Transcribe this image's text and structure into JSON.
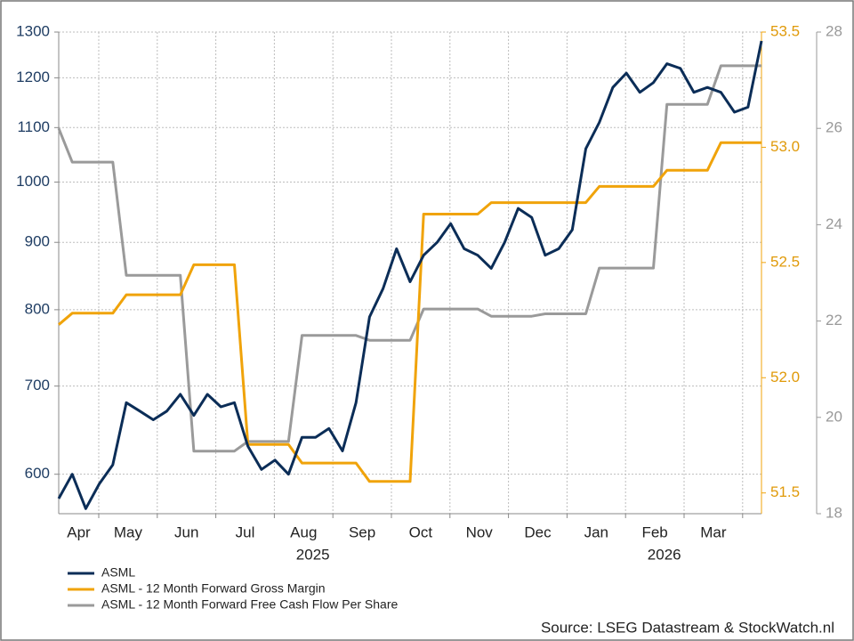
{
  "chart_data": {
    "type": "line",
    "ylog": true,
    "grid": true,
    "legend": "bottom-left",
    "source": "Source: LSEG Datastream & StockWatch.nl",
    "categories": [
      null,
      null,
      null,
      null,
      null,
      null,
      null,
      null,
      null,
      null,
      null,
      null,
      null,
      null,
      null,
      null,
      null,
      null,
      null,
      null,
      null,
      null,
      null,
      null,
      null,
      null,
      null,
      null,
      null,
      null,
      null,
      null,
      null,
      null,
      null,
      null,
      null,
      null,
      null,
      null,
      null,
      null,
      null,
      null,
      null,
      null,
      null,
      null,
      null,
      null,
      null,
      null,
      null
    ],
    "months": [
      "Apr",
      "May",
      "Jun",
      "Jul",
      "Aug",
      "Sep",
      "Oct",
      "Nov",
      "Dec",
      "Jan",
      "Feb",
      "Mar"
    ],
    "years": [
      "2025",
      "2026"
    ],
    "ylim": [
      560,
      1300
    ],
    "yticks": [
      600,
      700,
      800,
      900,
      1000,
      1100,
      1200,
      1300
    ],
    "y2lim": [
      51.41,
      53.5
    ],
    "y2ticks": [
      51.5,
      {
        "value": 52,
        "label": "52.0"
      },
      52.5,
      {
        "value": 53,
        "label": "53.0"
      },
      53.5
    ],
    "y3lim": [
      18,
      28
    ],
    "y3ticks": [
      18,
      20,
      22,
      24,
      26,
      28
    ],
    "series": [
      {
        "name": "ASML",
        "color": "#0b2d57",
        "axis": "y",
        "values": [
          575,
          600,
          565,
          590,
          610,
          680,
          670,
          660,
          670,
          690,
          665,
          690,
          675,
          680,
          630,
          605,
          615,
          600,
          640,
          640,
          650,
          625,
          680,
          790,
          830,
          890,
          840,
          880,
          900,
          930,
          890,
          880,
          860,
          900,
          955,
          940,
          880,
          890,
          920,
          1060,
          1110,
          1180,
          1210,
          1170,
          1190,
          1230,
          1220,
          1170,
          1180,
          1170,
          1130,
          1140,
          1280
        ]
      },
      {
        "name": "ASML - 12 Month Forward Gross Margin",
        "color": "#f0a30a",
        "axis": "y2",
        "values": [
          52.23,
          52.28,
          52.28,
          52.28,
          52.28,
          52.36,
          52.36,
          52.36,
          52.36,
          52.36,
          52.49,
          52.49,
          52.49,
          52.49,
          51.71,
          51.71,
          51.71,
          51.71,
          51.63,
          51.63,
          51.63,
          51.63,
          51.63,
          51.55,
          51.55,
          51.55,
          51.55,
          52.71,
          52.71,
          52.71,
          52.71,
          52.71,
          52.76,
          52.76,
          52.76,
          52.76,
          52.76,
          52.76,
          52.76,
          52.76,
          52.83,
          52.83,
          52.83,
          52.83,
          52.83,
          52.9,
          52.9,
          52.9,
          52.9,
          53.02,
          53.02,
          53.02,
          53.02
        ]
      },
      {
        "name": "ASML - 12 Month Forward Free Cash Flow Per Share",
        "color": "#9a9a9a",
        "axis": "y3",
        "values": [
          26,
          25.3,
          25.3,
          25.3,
          25.3,
          22.95,
          22.95,
          22.95,
          22.95,
          22.95,
          19.3,
          19.3,
          19.3,
          19.3,
          19.5,
          19.5,
          19.5,
          19.5,
          21.7,
          21.7,
          21.7,
          21.7,
          21.7,
          21.6,
          21.6,
          21.6,
          21.6,
          22.25,
          22.25,
          22.25,
          22.25,
          22.25,
          22.1,
          22.1,
          22.1,
          22.1,
          22.15,
          22.15,
          22.15,
          22.15,
          23.1,
          23.1,
          23.1,
          23.1,
          23.1,
          26.5,
          26.5,
          26.5,
          26.5,
          27.3,
          27.3,
          27.3,
          27.3
        ]
      }
    ]
  }
}
